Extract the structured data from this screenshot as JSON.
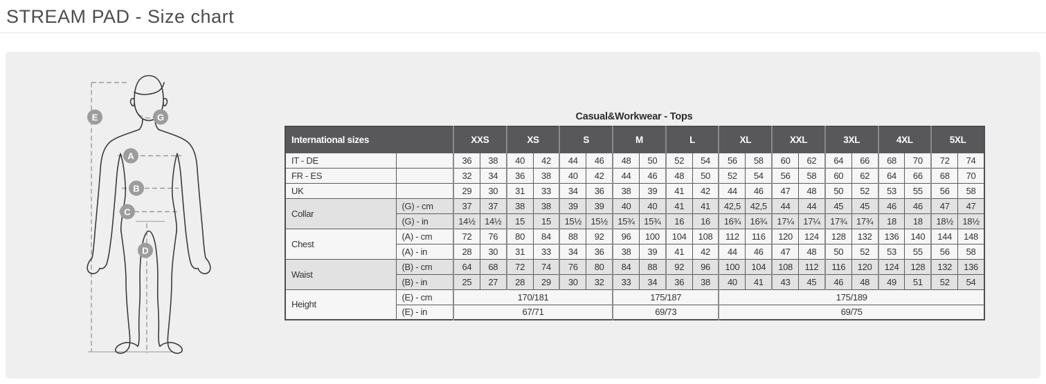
{
  "page_title": "STREAM PAD - Size chart",
  "figure": {
    "markers": [
      "E",
      "G",
      "A",
      "B",
      "C",
      "D"
    ]
  },
  "size_table": {
    "caption": "Casual&Workwear - Tops",
    "corner_label": "International sizes",
    "sizes": [
      "XXS",
      "XS",
      "S",
      "M",
      "L",
      "XL",
      "XXL",
      "3XL",
      "4XL",
      "5XL"
    ],
    "rows": [
      {
        "label": "IT - DE",
        "shaded": false,
        "cells": [
          "36",
          "38",
          "40",
          "42",
          "44",
          "46",
          "48",
          "50",
          "52",
          "54",
          "56",
          "58",
          "60",
          "62",
          "64",
          "66",
          "68",
          "70",
          "72",
          "74"
        ]
      },
      {
        "label": "FR - ES",
        "shaded": false,
        "cells": [
          "32",
          "34",
          "36",
          "38",
          "40",
          "42",
          "44",
          "46",
          "48",
          "50",
          "52",
          "54",
          "56",
          "58",
          "60",
          "62",
          "64",
          "66",
          "68",
          "70"
        ]
      },
      {
        "label": "UK",
        "shaded": false,
        "cells": [
          "29",
          "30",
          "31",
          "33",
          "34",
          "36",
          "38",
          "39",
          "41",
          "42",
          "44",
          "46",
          "47",
          "48",
          "50",
          "52",
          "53",
          "55",
          "56",
          "58"
        ]
      },
      {
        "label": "Collar",
        "shaded": true,
        "subrows": [
          {
            "unit": "(G) - cm",
            "cells": [
              "37",
              "37",
              "38",
              "38",
              "39",
              "39",
              "40",
              "40",
              "41",
              "41",
              "42,5",
              "42,5",
              "44",
              "44",
              "45",
              "45",
              "46",
              "46",
              "47",
              "47"
            ]
          },
          {
            "unit": "(G) - in",
            "cells": [
              "14½",
              "14½",
              "15",
              "15",
              "15½",
              "15½",
              "15¾",
              "15¾",
              "16",
              "16",
              "16¾",
              "16¾",
              "17¼",
              "17¼",
              "17¾",
              "17¾",
              "18",
              "18",
              "18½",
              "18½"
            ]
          }
        ]
      },
      {
        "label": "Chest",
        "shaded": false,
        "subrows": [
          {
            "unit": "(A) - cm",
            "cells": [
              "72",
              "76",
              "80",
              "84",
              "88",
              "92",
              "96",
              "100",
              "104",
              "108",
              "112",
              "116",
              "120",
              "124",
              "128",
              "132",
              "136",
              "140",
              "144",
              "148"
            ]
          },
          {
            "unit": "(A) - in",
            "cells": [
              "28",
              "30",
              "31",
              "33",
              "34",
              "36",
              "38",
              "39",
              "41",
              "42",
              "44",
              "46",
              "47",
              "48",
              "50",
              "52",
              "53",
              "55",
              "56",
              "58"
            ]
          }
        ]
      },
      {
        "label": "Waist",
        "shaded": true,
        "subrows": [
          {
            "unit": "(B) - cm",
            "cells": [
              "64",
              "68",
              "72",
              "74",
              "76",
              "80",
              "84",
              "88",
              "92",
              "96",
              "100",
              "104",
              "108",
              "112",
              "116",
              "120",
              "124",
              "128",
              "132",
              "136"
            ]
          },
          {
            "unit": "(B) - in",
            "cells": [
              "25",
              "27",
              "28",
              "29",
              "30",
              "32",
              "33",
              "34",
              "36",
              "38",
              "40",
              "41",
              "43",
              "45",
              "46",
              "48",
              "49",
              "51",
              "52",
              "54"
            ]
          }
        ]
      },
      {
        "label": "Height",
        "shaded": false,
        "subrows": [
          {
            "unit": "(E) - cm",
            "spans": [
              {
                "text": "170/181",
                "cols": 6
              },
              {
                "text": "175/187",
                "cols": 4
              },
              {
                "text": "175/189",
                "cols": 10
              }
            ]
          },
          {
            "unit": "(E) - in",
            "spans": [
              {
                "text": "67/71",
                "cols": 6
              },
              {
                "text": "69/73",
                "cols": 4
              },
              {
                "text": "69/75",
                "cols": 10
              }
            ]
          }
        ]
      }
    ]
  }
}
